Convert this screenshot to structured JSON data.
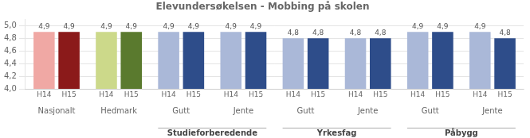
{
  "chart_data": {
    "type": "bar",
    "title": "Elevundersøkelsen - Mobbing på skolen",
    "categories": [
      "Nasjonalt",
      "Hedmark",
      "Gutt",
      "Jente",
      "Gutt",
      "Jente",
      "Gutt",
      "Jente"
    ],
    "series": [
      {
        "name": "H14",
        "colors": [
          "#f0a8a4",
          "#ccd98a",
          "#aab8d8",
          "#aab8d8",
          "#aab8d8",
          "#aab8d8",
          "#aab8d8",
          "#aab8d8"
        ],
        "values": [
          4.9,
          4.9,
          4.9,
          4.9,
          4.8,
          4.8,
          4.9,
          4.9
        ],
        "value_labels": [
          "4,9",
          "4,9",
          "4,9",
          "4,9",
          "4,8",
          "4,8",
          "4,9",
          "4,9"
        ]
      },
      {
        "name": "H15",
        "colors": [
          "#8b1a1a",
          "#5a7a2e",
          "#2e4d8a",
          "#2e4d8a",
          "#2e4d8a",
          "#2e4d8a",
          "#2e4d8a",
          "#2e4d8a"
        ],
        "values": [
          4.9,
          4.9,
          4.9,
          4.9,
          4.8,
          4.8,
          4.9,
          4.8
        ],
        "value_labels": [
          "4,9",
          "4,9",
          "4,9",
          "4,9",
          "4,8",
          "4,8",
          "4,9",
          "4,8"
        ]
      }
    ],
    "ylim": [
      4.0,
      5.1
    ],
    "yticks": [
      {
        "value": 4.0,
        "label": "4,0"
      },
      {
        "value": 4.2,
        "label": "4,2"
      },
      {
        "value": 4.4,
        "label": "4,4"
      },
      {
        "value": 4.6,
        "label": "4,6"
      },
      {
        "value": 4.8,
        "label": "4,8"
      },
      {
        "value": 5.0,
        "label": "5,0"
      }
    ],
    "grid": true,
    "data_labels": true,
    "annotations": [
      {
        "text": "Studieforberedende",
        "from": 2,
        "to": 3
      },
      {
        "text": "Yrkesfag",
        "from": 4,
        "to": 5
      },
      {
        "text": "Påbygg",
        "from": 6,
        "to": 7
      }
    ]
  }
}
